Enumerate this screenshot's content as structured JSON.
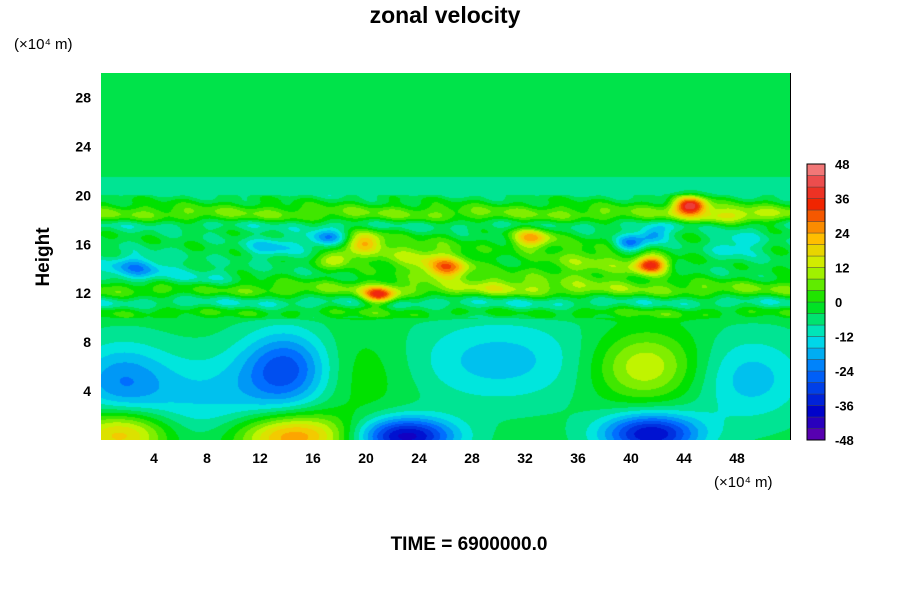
{
  "chart_data": {
    "type": "heatmap",
    "title": "zonal velocity",
    "xlabel": "",
    "ylabel": "Height",
    "x_unit_label": "(×10⁴ m)",
    "y_unit_label": "(×10⁴ m)",
    "xlim": [
      0,
      52
    ],
    "ylim": [
      0,
      30
    ],
    "x_ticks": [
      4,
      8,
      12,
      16,
      20,
      24,
      28,
      32,
      36,
      40,
      44,
      48
    ],
    "y_ticks": [
      4,
      8,
      12,
      16,
      20,
      24,
      28
    ],
    "colorbar": {
      "min": -48,
      "max": 48,
      "step": 4,
      "tick_labels": [
        48,
        36,
        24,
        12,
        0,
        -12,
        -24,
        -36,
        -48
      ]
    },
    "background_value": -4,
    "features": [
      {
        "x": 1.5,
        "y": 0.5,
        "value": 26,
        "sx": 2.5,
        "sy": 1.4
      },
      {
        "x": 14.5,
        "y": 0.3,
        "value": 30,
        "sx": 3.0,
        "sy": 1.3
      },
      {
        "x": 23.0,
        "y": 0.3,
        "value": -36,
        "sx": 2.6,
        "sy": 1.1
      },
      {
        "x": 41.5,
        "y": 0.5,
        "value": -34,
        "sx": 2.6,
        "sy": 1.2
      },
      {
        "x": 14.0,
        "y": 5.8,
        "value": -24,
        "sx": 2.4,
        "sy": 2.2
      },
      {
        "x": 41.0,
        "y": 6.0,
        "value": 18,
        "sx": 2.8,
        "sy": 2.0
      },
      {
        "x": 1.5,
        "y": 4.8,
        "value": -16,
        "sx": 2.5,
        "sy": 2.2
      },
      {
        "x": 8.0,
        "y": 3.5,
        "value": -10,
        "sx": 4.0,
        "sy": 2.5
      },
      {
        "x": 30.0,
        "y": 6.5,
        "value": -12,
        "sx": 5.0,
        "sy": 2.5
      },
      {
        "x": 19.5,
        "y": 5.5,
        "value": 6,
        "sx": 3.0,
        "sy": 2.5
      },
      {
        "x": 49.0,
        "y": 5.0,
        "value": -12,
        "sx": 3.0,
        "sy": 2.5
      },
      {
        "x": 21.0,
        "y": 11.8,
        "value": 34,
        "sx": 0.9,
        "sy": 0.5
      },
      {
        "x": 20.0,
        "y": 16.2,
        "value": 24,
        "sx": 1.0,
        "sy": 0.6
      },
      {
        "x": 32.5,
        "y": 16.5,
        "value": 26,
        "sx": 1.1,
        "sy": 0.6
      },
      {
        "x": 44.5,
        "y": 19.2,
        "value": 40,
        "sx": 0.9,
        "sy": 0.5
      },
      {
        "x": 41.5,
        "y": 14.3,
        "value": 38,
        "sx": 0.9,
        "sy": 0.5
      },
      {
        "x": 26.0,
        "y": 14.0,
        "value": 26,
        "sx": 1.2,
        "sy": 0.6
      },
      {
        "x": 24.0,
        "y": 15.0,
        "value": 14,
        "sx": 3.0,
        "sy": 1.0
      },
      {
        "x": 37.0,
        "y": 14.5,
        "value": 12,
        "sx": 3.0,
        "sy": 1.2
      },
      {
        "x": 17.8,
        "y": 14.8,
        "value": 18,
        "sx": 0.9,
        "sy": 0.5
      },
      {
        "x": 17.0,
        "y": 16.5,
        "value": -18,
        "sx": 0.9,
        "sy": 0.5
      },
      {
        "x": 39.8,
        "y": 16.0,
        "value": -20,
        "sx": 0.9,
        "sy": 0.5
      },
      {
        "x": 41.7,
        "y": 16.8,
        "value": -18,
        "sx": 0.8,
        "sy": 0.5
      },
      {
        "x": 2.5,
        "y": 14.0,
        "value": -16,
        "sx": 1.8,
        "sy": 0.8
      },
      {
        "x": 13.0,
        "y": 15.8,
        "value": -12,
        "sx": 1.4,
        "sy": 0.6
      },
      {
        "x": 48.0,
        "y": 16.0,
        "value": -10,
        "sx": 1.2,
        "sy": 0.8
      },
      {
        "x": 7.5,
        "y": 13.0,
        "value": -8,
        "sx": 2.0,
        "sy": 0.7
      },
      {
        "x": 30.0,
        "y": 12.8,
        "value": 8,
        "sx": 2.5,
        "sy": 0.8
      },
      {
        "x": 47.5,
        "y": 18.2,
        "value": 10,
        "sx": 2.5,
        "sy": 0.6
      }
    ],
    "bands": [
      {
        "y": 18.5,
        "value": 10,
        "sy": 0.55
      },
      {
        "y": 17.6,
        "value": -5,
        "sy": 0.35
      },
      {
        "y": 12.3,
        "value": 10,
        "sy": 0.55
      },
      {
        "y": 11.3,
        "value": -6,
        "sy": 0.4
      },
      {
        "y": 10.4,
        "value": 6,
        "sy": 0.35
      },
      {
        "y": 21.2,
        "value": -3,
        "sy": 0.35
      },
      {
        "y": 20.3,
        "value": -4,
        "sy": 0.3
      }
    ],
    "annotation": "TIME = 6900000.0"
  },
  "colors": {
    "background": "#ffffff",
    "text": "#000000"
  }
}
